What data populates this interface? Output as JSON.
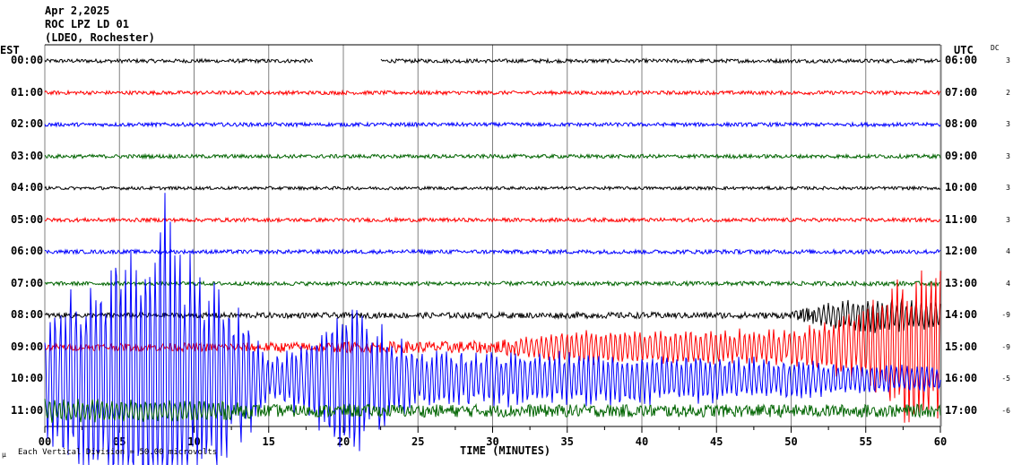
{
  "header": {
    "date": "Apr 2,2025",
    "station": "ROC LPZ LD 01",
    "network": "(LDEO, Rochester)"
  },
  "left_axis_label": "EST",
  "right_axis_label": "UTC",
  "dc_label": "DC",
  "footer": {
    "symbol": "µ",
    "scale_text": "Each Vertical Division =   50.00 microvolts"
  },
  "chart_data": {
    "type": "line",
    "xlabel": "TIME (MINUTES)",
    "xlim": [
      0,
      60
    ],
    "xticks": [
      "00",
      "05",
      "10",
      "15",
      "20",
      "25",
      "30",
      "35",
      "40",
      "45",
      "50",
      "55",
      "60"
    ],
    "grid": true,
    "amplitude_unit": "vertical divisions (50.00 microvolts each)",
    "rows": [
      {
        "est": "00:00",
        "utc": "06:00",
        "dc": "3",
        "color": "#000000",
        "gap": [
          18,
          22.5
        ],
        "envelope": [
          [
            0,
            0.06
          ],
          [
            60,
            0.06
          ]
        ]
      },
      {
        "est": "01:00",
        "utc": "07:00",
        "dc": "2",
        "color": "#ff0000",
        "envelope": [
          [
            0,
            0.06
          ],
          [
            60,
            0.06
          ]
        ]
      },
      {
        "est": "02:00",
        "utc": "08:00",
        "dc": "3",
        "color": "#0000ff",
        "envelope": [
          [
            0,
            0.06
          ],
          [
            60,
            0.06
          ]
        ]
      },
      {
        "est": "03:00",
        "utc": "09:00",
        "dc": "3",
        "color": "#006400",
        "envelope": [
          [
            0,
            0.06
          ],
          [
            60,
            0.06
          ]
        ]
      },
      {
        "est": "04:00",
        "utc": "10:00",
        "dc": "3",
        "color": "#000000",
        "envelope": [
          [
            0,
            0.05
          ],
          [
            60,
            0.05
          ]
        ]
      },
      {
        "est": "05:00",
        "utc": "11:00",
        "dc": "3",
        "color": "#ff0000",
        "envelope": [
          [
            0,
            0.06
          ],
          [
            60,
            0.06
          ]
        ]
      },
      {
        "est": "06:00",
        "utc": "12:00",
        "dc": "4",
        "color": "#0000ff",
        "envelope": [
          [
            0,
            0.06
          ],
          [
            60,
            0.07
          ]
        ]
      },
      {
        "est": "07:00",
        "utc": "13:00",
        "dc": "4",
        "color": "#006400",
        "envelope": [
          [
            0,
            0.06
          ],
          [
            60,
            0.07
          ]
        ]
      },
      {
        "est": "08:00",
        "utc": "14:00",
        "dc": "-9",
        "color": "#000000",
        "envelope": [
          [
            0,
            0.08
          ],
          [
            50,
            0.1
          ],
          [
            53,
            0.5
          ],
          [
            56,
            0.6
          ],
          [
            60,
            0.5
          ]
        ]
      },
      {
        "est": "09:00",
        "utc": "15:00",
        "dc": "-9",
        "color": "#ff0000",
        "envelope": [
          [
            0,
            0.1
          ],
          [
            30,
            0.2
          ],
          [
            36,
            0.6
          ],
          [
            50,
            0.6
          ],
          [
            55,
            1.2
          ],
          [
            56,
            2.3
          ],
          [
            60,
            2.8
          ]
        ]
      },
      {
        "est": "10:00",
        "utc": "16:00",
        "dc": "-5",
        "color": "#0000ff",
        "envelope": [
          [
            0,
            2.0
          ],
          [
            3,
            4.0
          ],
          [
            6,
            4.5
          ],
          [
            8,
            6.0
          ],
          [
            10,
            4.0
          ],
          [
            13,
            2.5
          ],
          [
            15,
            0.8
          ],
          [
            18,
            1.4
          ],
          [
            20,
            3.0
          ],
          [
            22,
            2.0
          ],
          [
            25,
            1.0
          ],
          [
            35,
            0.9
          ],
          [
            45,
            0.8
          ],
          [
            55,
            0.5
          ],
          [
            60,
            0.4
          ]
        ]
      },
      {
        "est": "11:00",
        "utc": "17:00",
        "dc": "-6",
        "color": "#006400",
        "envelope": [
          [
            0,
            0.4
          ],
          [
            10,
            0.35
          ],
          [
            15,
            0.2
          ],
          [
            60,
            0.2
          ]
        ]
      }
    ]
  }
}
